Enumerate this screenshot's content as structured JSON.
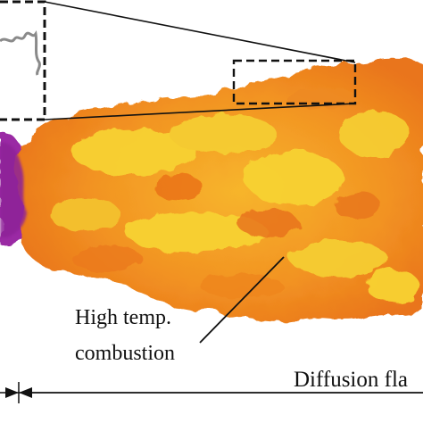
{
  "annotations": {
    "high_temp_line1": "High temp.",
    "high_temp_line2": "combustion",
    "diffusion_label": "Diffusion fla"
  },
  "colors": {
    "flame_orange": "#f5901e",
    "flame_dark_orange": "#e46a10",
    "flame_yellow": "#f8d233",
    "purple_region": "#9a2aa4",
    "line": "#111111"
  },
  "icons": {
    "inset_frame": "dashed-rectangle",
    "zoom_box": "dashed-rectangle",
    "pointer": "leader-line",
    "dimension": "double-arrow"
  }
}
